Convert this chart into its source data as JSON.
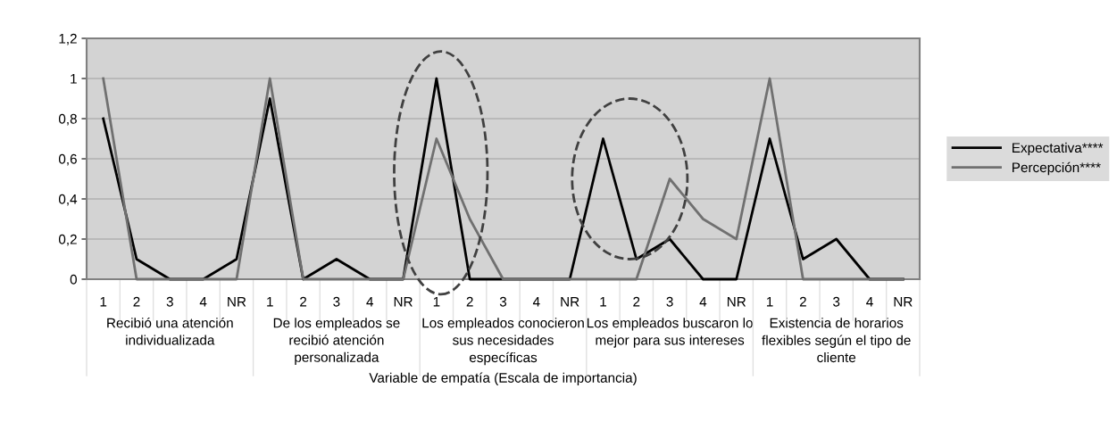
{
  "chart_data": {
    "type": "line",
    "xlabel": "Variable de empatía (Escala de importancia)",
    "categories": [
      "1",
      "2",
      "3",
      "4",
      "NR",
      "1",
      "2",
      "3",
      "4",
      "NR",
      "1",
      "2",
      "3",
      "4",
      "NR",
      "1",
      "2",
      "3",
      "4",
      "NR",
      "1",
      "2",
      "3",
      "4",
      "NR"
    ],
    "series": [
      {
        "name": "Expectativa****",
        "color": "#000000",
        "values": [
          0.8,
          0.1,
          0,
          0,
          0.1,
          0.9,
          0,
          0.1,
          0,
          0,
          1,
          0,
          0,
          0,
          0,
          0.7,
          0.1,
          0.2,
          0,
          0,
          0.7,
          0.1,
          0.2,
          0,
          0
        ]
      },
      {
        "name": "Percepción****",
        "color": "#707070",
        "values": [
          1,
          0,
          0,
          0,
          0,
          1,
          0,
          0,
          0,
          0,
          0.7,
          0.3,
          0,
          0,
          0,
          0,
          0,
          0.5,
          0.3,
          0.2,
          1,
          0,
          0,
          0,
          0
        ]
      }
    ],
    "annotations": [
      "Recibió una atención\nindividualizada",
      "De los empleados se\nrecibió atención\npersonalizada",
      "Los empleados conocieron\nsus necesidades\nespecíficas",
      "Los empleados buscaron lo\nmejor para sus intereses",
      "Existencia de horarios\nflexibles según el tipo de\ncliente"
    ],
    "ylim": [
      0,
      1.2
    ],
    "yticks": [
      0,
      {
        "value": 0.2,
        "label": "0,2"
      },
      {
        "value": 0.4,
        "label": "0,4"
      },
      {
        "value": 0.6,
        "label": "0,6"
      },
      {
        "value": 0.8,
        "label": "0,8"
      },
      1,
      {
        "value": 1.2,
        "label": "1,2"
      }
    ],
    "grid": "y",
    "legend": "right",
    "marker": "none",
    "line_style": "solid"
  }
}
